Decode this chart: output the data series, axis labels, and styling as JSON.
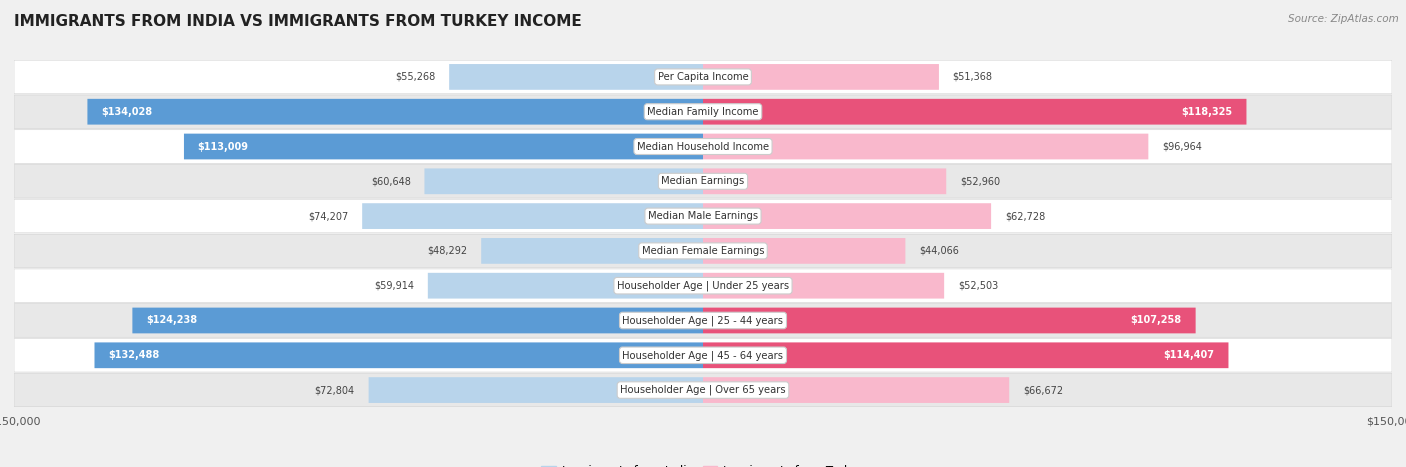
{
  "title": "IMMIGRANTS FROM INDIA VS IMMIGRANTS FROM TURKEY INCOME",
  "source": "Source: ZipAtlas.com",
  "categories": [
    "Per Capita Income",
    "Median Family Income",
    "Median Household Income",
    "Median Earnings",
    "Median Male Earnings",
    "Median Female Earnings",
    "Householder Age | Under 25 years",
    "Householder Age | 25 - 44 years",
    "Householder Age | 45 - 64 years",
    "Householder Age | Over 65 years"
  ],
  "india_values": [
    55268,
    134028,
    113009,
    60648,
    74207,
    48292,
    59914,
    124238,
    132488,
    72804
  ],
  "turkey_values": [
    51368,
    118325,
    96964,
    52960,
    62728,
    44066,
    52503,
    107258,
    114407,
    66672
  ],
  "india_color_light": "#b8d4eb",
  "india_color_dark": "#5b9bd5",
  "turkey_color_light": "#f9b8cc",
  "turkey_color_dark": "#e8527a",
  "india_threshold": 100000,
  "turkey_threshold": 100000,
  "max_value": 150000,
  "background_color": "#f0f0f0",
  "row_bg_white": "#ffffff",
  "row_bg_gray": "#e8e8e8",
  "title_fontsize": 11,
  "source_fontsize": 7.5,
  "legend_label_india": "Immigrants from India",
  "legend_label_turkey": "Immigrants from Turkey"
}
